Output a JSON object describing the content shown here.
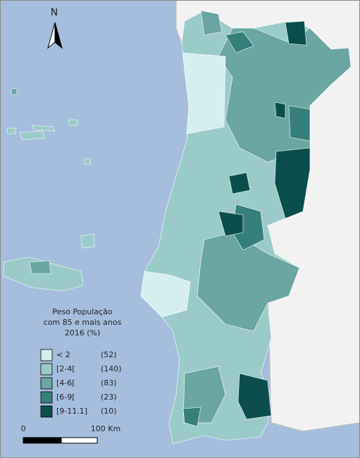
{
  "north_label": "N",
  "legend": {
    "title_lines": [
      "Peso População",
      "com 85 e mais anos",
      "2016 (%)"
    ],
    "classes": [
      {
        "label": "< 2",
        "count": "(52)",
        "color": "#d6efee"
      },
      {
        "label": "[2-4[",
        "count": "(140)",
        "color": "#9bcbc8"
      },
      {
        "label": "[4-6[",
        "count": "(83)",
        "color": "#6aa6a2"
      },
      {
        "label": "[6-9[",
        "count": "(23)",
        "color": "#35807b"
      },
      {
        "label": "[9-11.1]",
        "count": "(10)",
        "color": "#0a4f4b"
      }
    ]
  },
  "scale_bar": {
    "start_label": "0",
    "end_label": "100 Km"
  }
}
